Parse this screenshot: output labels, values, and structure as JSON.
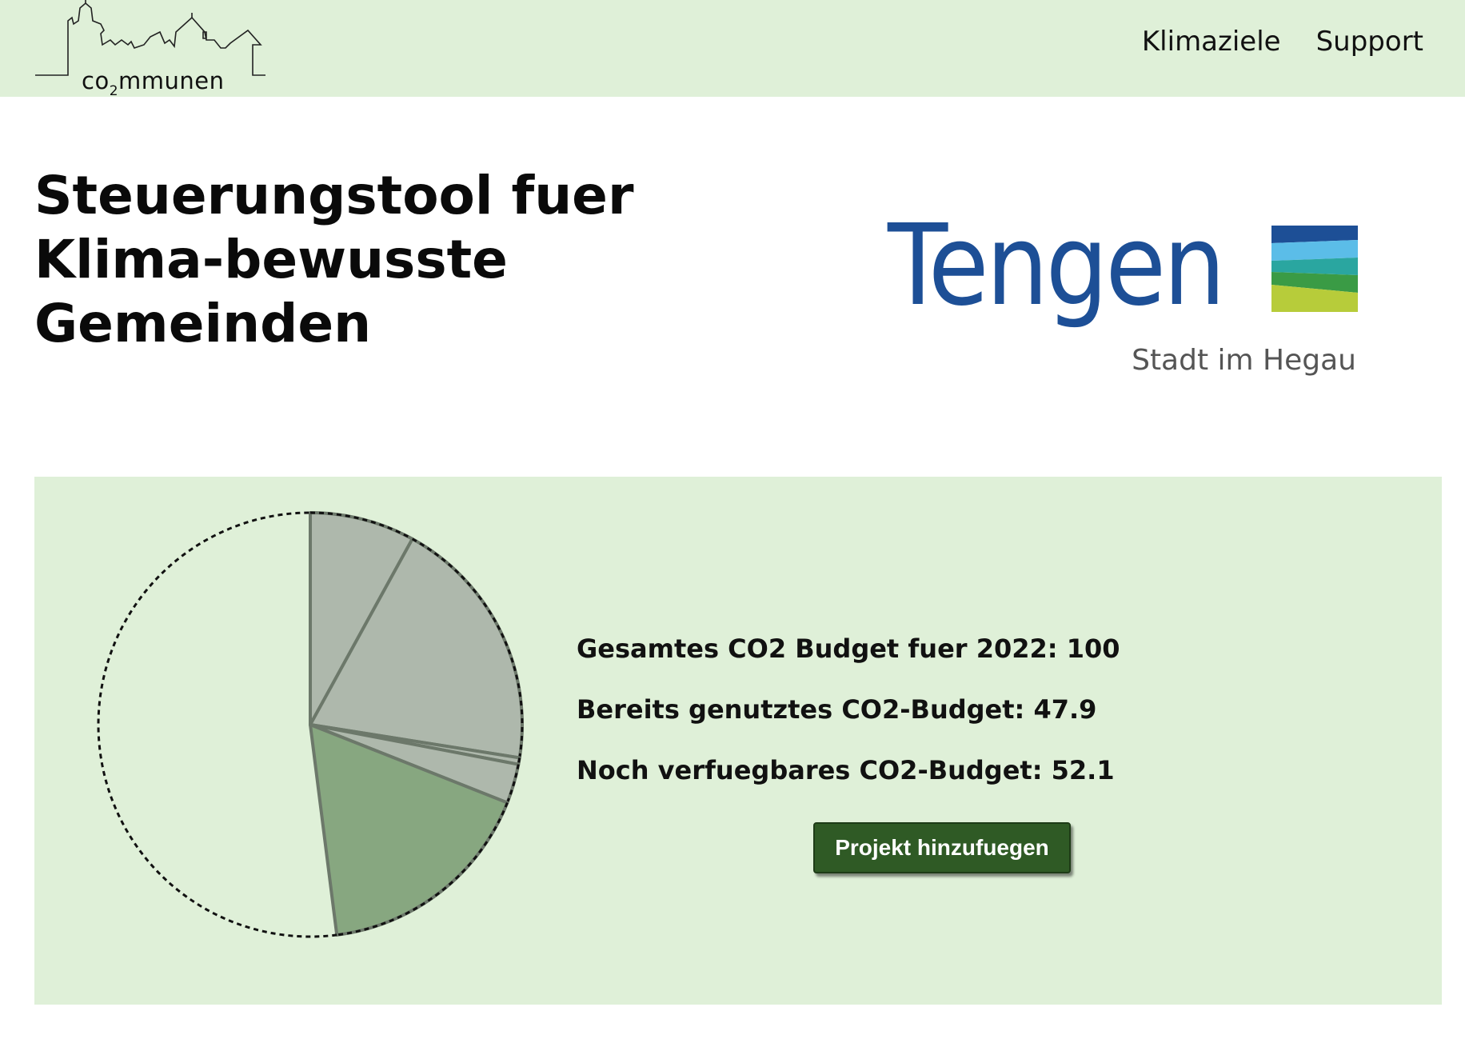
{
  "header": {
    "logo_text": "co",
    "logo_subscript": "2",
    "logo_text_rest": "mmunen",
    "nav": [
      "Klimaziele",
      "Support"
    ]
  },
  "page_title": "Steuerungstool fuer Klima-bewusste Gemeinden",
  "town_logo": {
    "name": "Tengen",
    "subtitle": "Stadt im Hegau",
    "colors": [
      "#1d4f96",
      "#5bbde8",
      "#2aa6a0",
      "#3a9b45",
      "#b7cc3a"
    ]
  },
  "budget": {
    "total_label": "Gesamtes CO2 Budget fuer 2022: 100",
    "used_label": "Bereits genutztes CO2-Budget: 47.9",
    "remaining_label": "Noch verfuegbares CO2-Budget: 52.1"
  },
  "add_project_button": "Projekt hinzufuegen",
  "colors": {
    "header_bg": "#dff0d8",
    "panel_bg": "#dff0d8",
    "slice_grey": "#aeb8ac",
    "slice_green": "#87a780",
    "button_bg": "#2f5a25"
  },
  "chart_data": {
    "type": "pie",
    "total": 100,
    "values": [
      8,
      19.5,
      0.5,
      3,
      17,
      52
    ],
    "colors": [
      "#aeb8ac",
      "#aeb8ac",
      "#aeb8ac",
      "#aeb8ac",
      "#87a780",
      "none"
    ],
    "remaining_style": "dashed-outline"
  }
}
